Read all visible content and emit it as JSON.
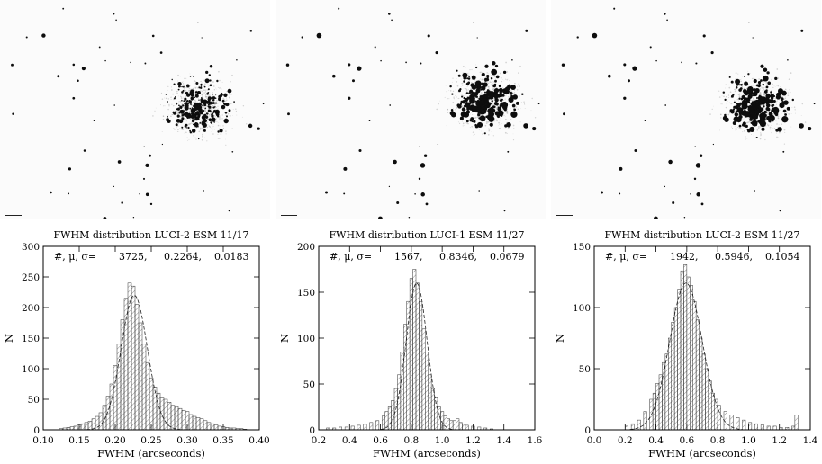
{
  "chart_data": [
    {
      "type": "histogram",
      "title": "FWHM distribution LUCI-2 ESM 11/17",
      "xlabel": "FWHM (arcseconds)",
      "ylabel": "N",
      "xlim": [
        0.1,
        0.4
      ],
      "ylim": [
        0,
        300
      ],
      "xticks": [
        "0.10",
        "0.15",
        "0.20",
        "0.25",
        "0.30",
        "0.35",
        "0.40"
      ],
      "yticks": [
        "0",
        "50",
        "100",
        "150",
        "200",
        "250",
        "300"
      ],
      "stats_label": "#, μ, σ=",
      "stats": [
        "3725,",
        "0.2264,",
        "0.0183"
      ],
      "bin_width": 0.005,
      "x": [
        0.125,
        0.13,
        0.135,
        0.14,
        0.145,
        0.15,
        0.155,
        0.16,
        0.165,
        0.17,
        0.175,
        0.18,
        0.185,
        0.19,
        0.195,
        0.2,
        0.205,
        0.21,
        0.215,
        0.22,
        0.225,
        0.23,
        0.235,
        0.24,
        0.245,
        0.25,
        0.255,
        0.26,
        0.265,
        0.27,
        0.275,
        0.28,
        0.285,
        0.29,
        0.295,
        0.3,
        0.305,
        0.31,
        0.315,
        0.32,
        0.325,
        0.33,
        0.335,
        0.34,
        0.345,
        0.35,
        0.355,
        0.36,
        0.365,
        0.37,
        0.375,
        0.38
      ],
      "values": [
        2,
        3,
        4,
        5,
        6,
        8,
        10,
        12,
        14,
        18,
        22,
        28,
        40,
        55,
        75,
        105,
        140,
        180,
        215,
        240,
        235,
        205,
        175,
        140,
        110,
        85,
        70,
        60,
        52,
        50,
        45,
        40,
        38,
        35,
        32,
        30,
        25,
        22,
        20,
        18,
        15,
        12,
        10,
        8,
        6,
        5,
        4,
        3,
        3,
        2,
        2,
        1
      ],
      "gaussian": {
        "mu": 0.2264,
        "sigma": 0.0183,
        "peak": 220
      }
    },
    {
      "type": "histogram",
      "title": "FWHM distribution LUCI-1 ESM 11/27",
      "xlabel": "FWHM (arcseconds)",
      "ylabel": "N",
      "xlim": [
        0.2,
        1.6
      ],
      "ylim": [
        0,
        200
      ],
      "xticks": [
        "0.2",
        "0.4",
        "0.6",
        "0.8",
        "1.0",
        "1.2",
        "1.4",
        "1.6"
      ],
      "yticks": [
        "0",
        "50",
        "100",
        "150",
        "200"
      ],
      "stats_label": "#, μ, σ=",
      "stats": [
        "1567,",
        "0.8346,",
        "0.0679"
      ],
      "bin_width": 0.02,
      "x": [
        0.26,
        0.3,
        0.34,
        0.38,
        0.42,
        0.46,
        0.5,
        0.54,
        0.58,
        0.62,
        0.64,
        0.66,
        0.68,
        0.7,
        0.72,
        0.74,
        0.76,
        0.78,
        0.8,
        0.82,
        0.84,
        0.86,
        0.88,
        0.9,
        0.92,
        0.94,
        0.96,
        0.98,
        1.0,
        1.02,
        1.04,
        1.06,
        1.08,
        1.1,
        1.12,
        1.14,
        1.16,
        1.2,
        1.24,
        1.28,
        1.32
      ],
      "values": [
        2,
        2,
        3,
        3,
        4,
        5,
        6,
        8,
        10,
        15,
        20,
        25,
        32,
        45,
        60,
        85,
        115,
        140,
        165,
        175,
        160,
        140,
        110,
        85,
        60,
        45,
        35,
        25,
        20,
        15,
        12,
        10,
        10,
        12,
        8,
        6,
        5,
        4,
        3,
        2,
        1
      ],
      "gaussian": {
        "mu": 0.8346,
        "sigma": 0.0679,
        "peak": 160
      }
    },
    {
      "type": "histogram",
      "title": "FWHM distribution LUCI-2 ESM 11/27",
      "xlabel": "FWHM (arcseconds)",
      "ylabel": "N",
      "xlim": [
        0.0,
        1.4
      ],
      "ylim": [
        0,
        150
      ],
      "xticks": [
        "0.0",
        "0.2",
        "0.4",
        "0.6",
        "0.8",
        "1.0",
        "1.2",
        "1.4"
      ],
      "yticks": [
        "0",
        "50",
        "100",
        "150"
      ],
      "stats_label": "#, μ, σ=",
      "stats": [
        "1942,",
        "0.5946,",
        "0.1054"
      ],
      "bin_width": 0.02,
      "x": [
        0.21,
        0.25,
        0.29,
        0.33,
        0.37,
        0.39,
        0.41,
        0.43,
        0.45,
        0.47,
        0.49,
        0.51,
        0.53,
        0.55,
        0.57,
        0.59,
        0.61,
        0.63,
        0.65,
        0.67,
        0.69,
        0.71,
        0.73,
        0.75,
        0.77,
        0.79,
        0.81,
        0.85,
        0.89,
        0.93,
        0.97,
        1.01,
        1.05,
        1.09,
        1.13,
        1.17,
        1.21,
        1.25,
        1.29,
        1.31
      ],
      "values": [
        3,
        5,
        8,
        15,
        25,
        30,
        38,
        45,
        55,
        62,
        75,
        88,
        100,
        115,
        130,
        135,
        125,
        118,
        105,
        90,
        75,
        62,
        50,
        40,
        30,
        25,
        20,
        15,
        12,
        10,
        8,
        6,
        5,
        4,
        3,
        3,
        2,
        2,
        3,
        12
      ],
      "gaussian": {
        "mu": 0.5946,
        "sigma": 0.1054,
        "peak": 120
      }
    }
  ]
}
